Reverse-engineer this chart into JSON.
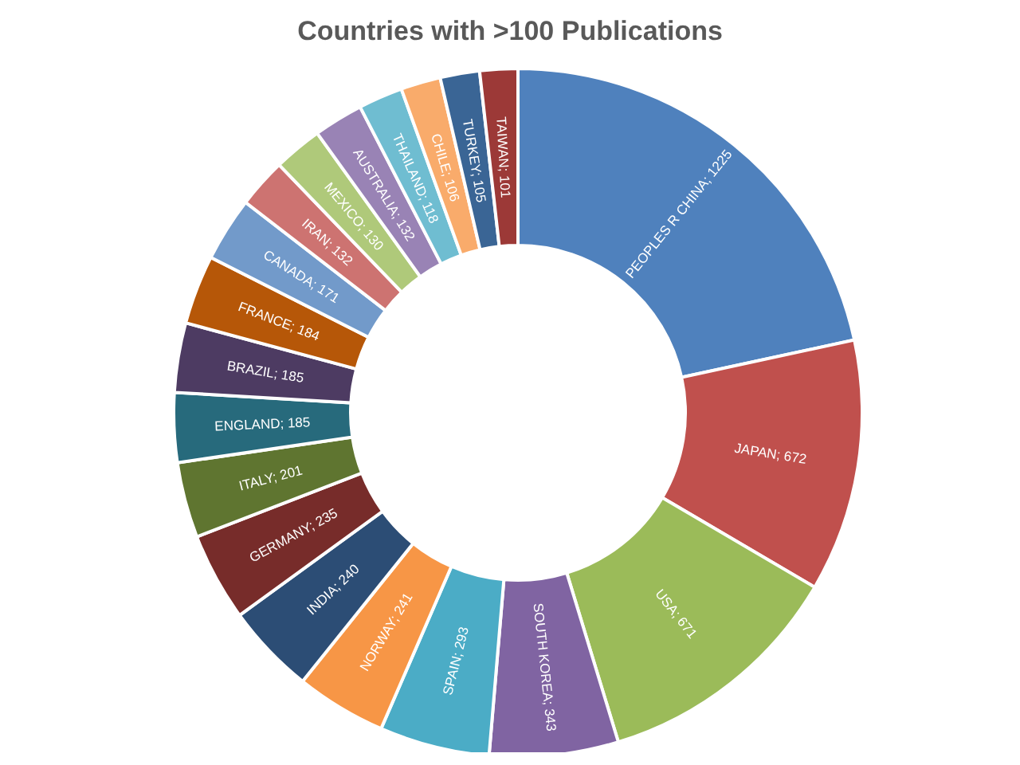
{
  "chart_data": {
    "type": "donut",
    "title": "Countries with >100 Publications",
    "categories": [
      "PEOPLES R CHINA",
      "JAPAN",
      "USA",
      "SOUTH KOREA",
      "SPAIN",
      "NORWAY",
      "INDIA",
      "GERMANY",
      "ITALY",
      "ENGLAND",
      "BRAZIL",
      "FRANCE",
      "CANADA",
      "IRAN",
      "MEXICO",
      "AUSTRALIA",
      "THAILAND",
      "CHILE",
      "TURKEY",
      "TAIWAN"
    ],
    "values": [
      1225,
      672,
      671,
      343,
      293,
      241,
      240,
      235,
      201,
      185,
      185,
      184,
      171,
      132,
      130,
      132,
      118,
      106,
      105,
      101
    ],
    "value_labels": [
      "; 1225",
      "; 672",
      "; 671",
      "; 343",
      "; 293",
      "; 241",
      "; 240",
      "; 235",
      "; 201",
      "; 185",
      "; 185",
      "; 184",
      "; 171",
      "; 132",
      "; 130",
      "; 132",
      "; 118",
      "; 106",
      "; 105",
      "; 101"
    ],
    "colors": [
      "#4f81bd",
      "#c0504d",
      "#9bbb59",
      "#8064a2",
      "#4bacc6",
      "#f79646",
      "#2c4d75",
      "#772c2a",
      "#5f7530",
      "#276a7c",
      "#4d3b62",
      "#b65708",
      "#729aca",
      "#cd7371",
      "#afc97a",
      "#9983b5",
      "#6fbdd1",
      "#f9ab6b",
      "#3a6595",
      "#9c3937"
    ],
    "legend": false
  }
}
